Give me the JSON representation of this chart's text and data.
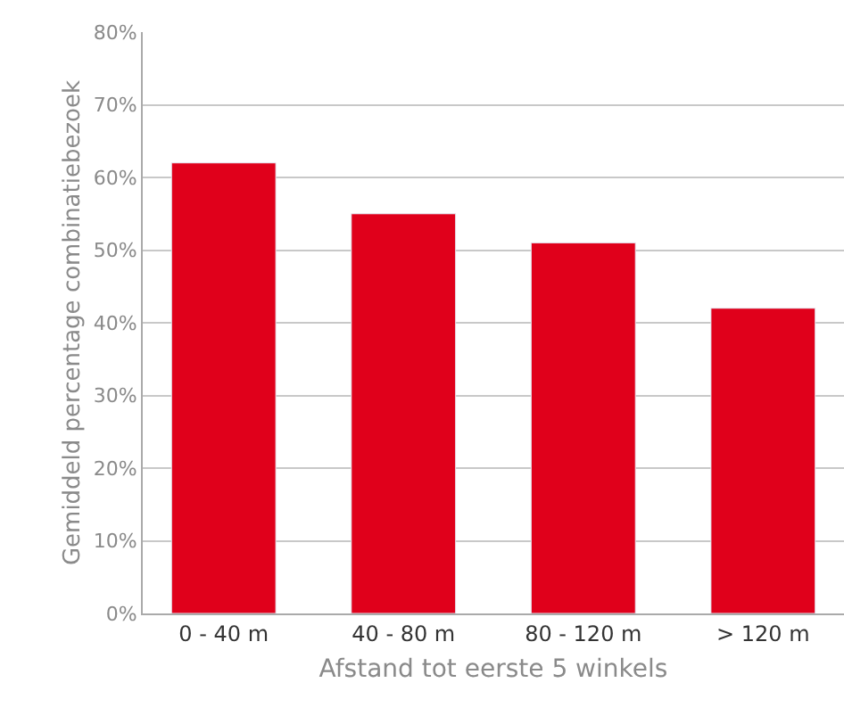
{
  "chart_data": {
    "type": "bar",
    "xlabel": "Afstand tot eerste 5 winkels",
    "ylabel": "Gemiddeld percentage combinatiebezoek",
    "categories": [
      "0 - 40 m",
      "40 - 80 m",
      "80 - 120 m",
      "> 120 m"
    ],
    "values": [
      62,
      55,
      51,
      42
    ],
    "color": "#e0001b",
    "ylim": [
      0,
      80
    ],
    "yticks": [
      {
        "value": 0,
        "label": "0%"
      },
      {
        "value": 10,
        "label": "10%"
      },
      {
        "value": 20,
        "label": "20%"
      },
      {
        "value": 30,
        "label": "30%"
      },
      {
        "value": 40,
        "label": "40%"
      },
      {
        "value": 50,
        "label": "50%"
      },
      {
        "value": 60,
        "label": "60%"
      },
      {
        "value": 70,
        "label": "70%"
      },
      {
        "value": 80,
        "label": "80%"
      }
    ],
    "grid": "y",
    "legend": false
  }
}
